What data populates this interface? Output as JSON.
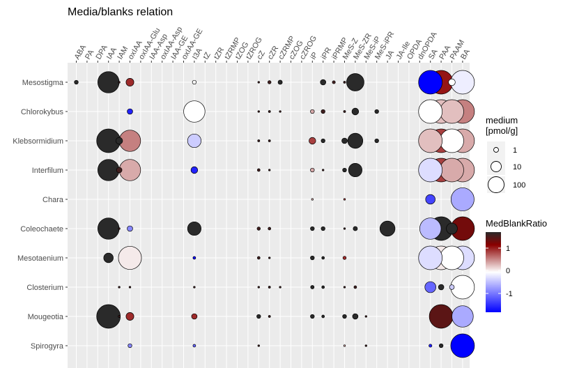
{
  "chart_data": {
    "type": "scatter",
    "title": "Media/blanks relation",
    "xlabel": "",
    "ylabel": "",
    "x_categories": [
      "ABA",
      "PA",
      "DPA",
      "IAA",
      "IAM",
      "oxIAA",
      "oxIAA-Glu",
      "IAA-Asp",
      "oxIAA-Asp",
      "IAA-GE",
      "oxIAA-GE",
      "I3A",
      "tZ",
      "tZR",
      "tZRMP",
      "tZOG",
      "tZROG",
      "cZ",
      "cZR",
      "cZRMP",
      "cZOG",
      "cZROG",
      "iP",
      "iPR",
      "iPRMP",
      "MeS-Z",
      "MeS-ZR",
      "MeS-iP",
      "MeS-iPR",
      "JA",
      "JA-Ile",
      "OPDA",
      "dnOPDA",
      "SA",
      "PAA",
      "PAAM",
      "BA"
    ],
    "y_categories": [
      "Mesostigma",
      "Chlorokybus",
      "Klebsormidium",
      "Interfilum",
      "Chara",
      "Coleochaete",
      "Mesotaenium",
      "Closterium",
      "Mougeotia",
      "Spirogyra"
    ],
    "size_legend": {
      "title": [
        "medium",
        "[pmol/g]"
      ],
      "breaks": [
        "1",
        "10",
        "100"
      ]
    },
    "color_legend": {
      "title": "MedBlankRatio",
      "breaks": [
        "1",
        "0",
        "-1"
      ],
      "low_color": "#0000ff",
      "mid_color": "#ffffff",
      "high_color": "#8b0000",
      "top_color": "#2a2a2a"
    },
    "points": [
      {
        "x": "ABA",
        "y": "Mesostigma",
        "medium": 1,
        "ratio": 1.6
      },
      {
        "x": "IAA",
        "y": "Mesostigma",
        "medium": 30,
        "ratio": 1.6
      },
      {
        "x": "IAM",
        "y": "Mesostigma",
        "medium": 0.2,
        "ratio": 1.5
      },
      {
        "x": "oxIAA",
        "y": "Mesostigma",
        "medium": 4,
        "ratio": 1.0
      },
      {
        "x": "I3A",
        "y": "Mesostigma",
        "medium": 1,
        "ratio": 0
      },
      {
        "x": "cZ",
        "y": "Mesostigma",
        "medium": 0.2,
        "ratio": 1.5
      },
      {
        "x": "cZR",
        "y": "Mesostigma",
        "medium": 0.7,
        "ratio": 1.5
      },
      {
        "x": "cZRMP",
        "y": "Mesostigma",
        "medium": 1.2,
        "ratio": 1.6
      },
      {
        "x": "iPR",
        "y": "Mesostigma",
        "medium": 2,
        "ratio": 1.6
      },
      {
        "x": "iPRMP",
        "y": "Mesostigma",
        "medium": 0.6,
        "ratio": 1.5
      },
      {
        "x": "MeS-Z",
        "y": "Mesostigma",
        "medium": 0.3,
        "ratio": 1.5
      },
      {
        "x": "MeS-ZR",
        "y": "Mesostigma",
        "medium": 20,
        "ratio": 1.6
      },
      {
        "x": "SA",
        "y": "Mesostigma",
        "medium": 40,
        "ratio": -1.5
      },
      {
        "x": "PAA",
        "y": "Mesostigma",
        "medium": 85,
        "ratio": 1.1
      },
      {
        "x": "PAAM",
        "y": "Mesostigma",
        "medium": 3,
        "ratio": 0
      },
      {
        "x": "BA",
        "y": "Mesostigma",
        "medium": 80,
        "ratio": -0.1
      },
      {
        "x": "oxIAA",
        "y": "Chlorokybus",
        "medium": 2,
        "ratio": -1.3
      },
      {
        "x": "I3A",
        "y": "Chlorokybus",
        "medium": 30,
        "ratio": 0
      },
      {
        "x": "cZ",
        "y": "Chlorokybus",
        "medium": 0.2,
        "ratio": 1.5
      },
      {
        "x": "cZR",
        "y": "Chlorokybus",
        "medium": 0.3,
        "ratio": 1.5
      },
      {
        "x": "cZRMP",
        "y": "Chlorokybus",
        "medium": 0.2,
        "ratio": 1.5
      },
      {
        "x": "iP",
        "y": "Chlorokybus",
        "medium": 1,
        "ratio": 0.4
      },
      {
        "x": "iPR",
        "y": "Chlorokybus",
        "medium": 1,
        "ratio": 1.5
      },
      {
        "x": "MeS-Z",
        "y": "Chlorokybus",
        "medium": 0.3,
        "ratio": 1.5
      },
      {
        "x": "MeS-ZR",
        "y": "Chlorokybus",
        "medium": 3,
        "ratio": 1.6
      },
      {
        "x": "MeS-iPR",
        "y": "Chlorokybus",
        "medium": 1,
        "ratio": 1.6
      },
      {
        "x": "SA",
        "y": "Chlorokybus",
        "medium": 40,
        "ratio": 0
      },
      {
        "x": "PAA",
        "y": "Chlorokybus",
        "medium": 120,
        "ratio": 0.3
      },
      {
        "x": "PAAM",
        "y": "Chlorokybus",
        "medium": 80,
        "ratio": 0.3
      },
      {
        "x": "BA",
        "y": "Chlorokybus",
        "medium": 120,
        "ratio": 0.6
      },
      {
        "x": "IAA",
        "y": "Klebsormidium",
        "medium": 120,
        "ratio": 1.6
      },
      {
        "x": "IAM",
        "y": "Klebsormidium",
        "medium": 3,
        "ratio": 1.6
      },
      {
        "x": "oxIAA",
        "y": "Klebsormidium",
        "medium": 30,
        "ratio": 0.6
      },
      {
        "x": "I3A",
        "y": "Klebsormidium",
        "medium": 12,
        "ratio": -0.3
      },
      {
        "x": "cZ",
        "y": "Klebsormidium",
        "medium": 0.3,
        "ratio": 1.5
      },
      {
        "x": "cZR",
        "y": "Klebsormidium",
        "medium": 0.3,
        "ratio": 1.5
      },
      {
        "x": "iP",
        "y": "Klebsormidium",
        "medium": 3,
        "ratio": 0.9
      },
      {
        "x": "iPR",
        "y": "Klebsormidium",
        "medium": 1,
        "ratio": 1.6
      },
      {
        "x": "MeS-Z",
        "y": "Klebsormidium",
        "medium": 2,
        "ratio": 1.6
      },
      {
        "x": "MeS-ZR",
        "y": "Klebsormidium",
        "medium": 15,
        "ratio": 1.6
      },
      {
        "x": "MeS-iPR",
        "y": "Klebsormidium",
        "medium": 1,
        "ratio": 1.6
      },
      {
        "x": "SA",
        "y": "Klebsormidium",
        "medium": 40,
        "ratio": 0.3
      },
      {
        "x": "PAA",
        "y": "Klebsormidium",
        "medium": 140,
        "ratio": 0.9
      },
      {
        "x": "PAAM",
        "y": "Klebsormidium",
        "medium": 120,
        "ratio": 0
      },
      {
        "x": "BA",
        "y": "Klebsormidium",
        "medium": 140,
        "ratio": 0.4
      },
      {
        "x": "IAA",
        "y": "Interfilum",
        "medium": 30,
        "ratio": 1.6
      },
      {
        "x": "IAM",
        "y": "Interfilum",
        "medium": 2,
        "ratio": 1.5
      },
      {
        "x": "oxIAA",
        "y": "Interfilum",
        "medium": 30,
        "ratio": 0.4
      },
      {
        "x": "I3A",
        "y": "Interfilum",
        "medium": 3,
        "ratio": -1.3
      },
      {
        "x": "cZ",
        "y": "Interfilum",
        "medium": 0.5,
        "ratio": 1.5
      },
      {
        "x": "cZR",
        "y": "Interfilum",
        "medium": 0.2,
        "ratio": 1.5
      },
      {
        "x": "iP",
        "y": "Interfilum",
        "medium": 1,
        "ratio": 0.4
      },
      {
        "x": "iPR",
        "y": "Interfilum",
        "medium": 0.2,
        "ratio": 1.5
      },
      {
        "x": "MeS-Z",
        "y": "Interfilum",
        "medium": 1,
        "ratio": 1.6
      },
      {
        "x": "MeS-ZR",
        "y": "Interfilum",
        "medium": 12,
        "ratio": 1.6
      },
      {
        "x": "SA",
        "y": "Interfilum",
        "medium": 40,
        "ratio": -0.2
      },
      {
        "x": "PAA",
        "y": "Interfilum",
        "medium": 140,
        "ratio": 0.9
      },
      {
        "x": "PAAM",
        "y": "Interfilum",
        "medium": 80,
        "ratio": 0.4
      },
      {
        "x": "BA",
        "y": "Interfilum",
        "medium": 140,
        "ratio": 0.4
      },
      {
        "x": "iP",
        "y": "Chara",
        "medium": 0.2,
        "ratio": 0.4
      },
      {
        "x": "MeS-Z",
        "y": "Chara",
        "medium": 0.2,
        "ratio": 0.9
      },
      {
        "x": "SA",
        "y": "Chara",
        "medium": 6,
        "ratio": -1.1
      },
      {
        "x": "BA",
        "y": "Chara",
        "medium": 35,
        "ratio": -0.5
      },
      {
        "x": "IAA",
        "y": "Coleochaete",
        "medium": 30,
        "ratio": 1.6
      },
      {
        "x": "IAM",
        "y": "Coleochaete",
        "medium": 0.2,
        "ratio": 1.5
      },
      {
        "x": "oxIAA",
        "y": "Coleochaete",
        "medium": 2,
        "ratio": -0.7
      },
      {
        "x": "I3A",
        "y": "Coleochaete",
        "medium": 12,
        "ratio": 1.6
      },
      {
        "x": "cZ",
        "y": "Coleochaete",
        "medium": 0.7,
        "ratio": 1.5
      },
      {
        "x": "cZR",
        "y": "Coleochaete",
        "medium": 0.5,
        "ratio": 1.5
      },
      {
        "x": "iP",
        "y": "Coleochaete",
        "medium": 1,
        "ratio": 1.6
      },
      {
        "x": "iPR",
        "y": "Coleochaete",
        "medium": 1,
        "ratio": 1.6
      },
      {
        "x": "MeS-Z",
        "y": "Coleochaete",
        "medium": 0.2,
        "ratio": 1.5
      },
      {
        "x": "MeS-ZR",
        "y": "Coleochaete",
        "medium": 1.2,
        "ratio": 1.6
      },
      {
        "x": "JA",
        "y": "Coleochaete",
        "medium": 15,
        "ratio": 1.6
      },
      {
        "x": "SA",
        "y": "Coleochaete",
        "medium": 30,
        "ratio": -0.4
      },
      {
        "x": "PAA",
        "y": "Coleochaete",
        "medium": 40,
        "ratio": 1.7
      },
      {
        "x": "PAAM",
        "y": "Coleochaete",
        "medium": 8,
        "ratio": 1.6
      },
      {
        "x": "BA",
        "y": "Coleochaete",
        "medium": 120,
        "ratio": 1.3
      },
      {
        "x": "IAA",
        "y": "Mesotaenium",
        "medium": 6,
        "ratio": 1.6
      },
      {
        "x": "oxIAA",
        "y": "Mesotaenium",
        "medium": 35,
        "ratio": 0.1
      },
      {
        "x": "I3A",
        "y": "Mesotaenium",
        "medium": 0.5,
        "ratio": -1.6
      },
      {
        "x": "cZ",
        "y": "Mesotaenium",
        "medium": 0.5,
        "ratio": 1.5
      },
      {
        "x": "cZR",
        "y": "Mesotaenium",
        "medium": 0.2,
        "ratio": 1.5
      },
      {
        "x": "iP",
        "y": "Mesotaenium",
        "medium": 1,
        "ratio": 1.6
      },
      {
        "x": "iPR",
        "y": "Mesotaenium",
        "medium": 0.5,
        "ratio": 1.6
      },
      {
        "x": "MeS-Z",
        "y": "Mesotaenium",
        "medium": 0.7,
        "ratio": 1.0
      },
      {
        "x": "SA",
        "y": "Mesotaenium",
        "medium": 80,
        "ratio": -0.2
      },
      {
        "x": "PAA",
        "y": "Mesotaenium",
        "medium": 140,
        "ratio": 0.1
      },
      {
        "x": "PAAM",
        "y": "Mesotaenium",
        "medium": 90,
        "ratio": 0
      },
      {
        "x": "BA",
        "y": "Mesotaenium",
        "medium": 120,
        "ratio": -0.2
      },
      {
        "x": "IAM",
        "y": "Closterium",
        "medium": 0.2,
        "ratio": 1.5
      },
      {
        "x": "oxIAA",
        "y": "Closterium",
        "medium": 0.2,
        "ratio": 1.5
      },
      {
        "x": "I3A",
        "y": "Closterium",
        "medium": 0.2,
        "ratio": 1.5
      },
      {
        "x": "cZ",
        "y": "Closterium",
        "medium": 0.2,
        "ratio": 1.5
      },
      {
        "x": "cZR",
        "y": "Closterium",
        "medium": 0.3,
        "ratio": 1.5
      },
      {
        "x": "cZRMP",
        "y": "Closterium",
        "medium": 0.2,
        "ratio": 1.5
      },
      {
        "x": "iP",
        "y": "Closterium",
        "medium": 0.8,
        "ratio": 1.6
      },
      {
        "x": "iPR",
        "y": "Closterium",
        "medium": 0.5,
        "ratio": 1.6
      },
      {
        "x": "MeS-Z",
        "y": "Closterium",
        "medium": 0.2,
        "ratio": 1.5
      },
      {
        "x": "MeS-ZR",
        "y": "Closterium",
        "medium": 0.5,
        "ratio": 1.5
      },
      {
        "x": "SA",
        "y": "Closterium",
        "medium": 8,
        "ratio": -0.9
      },
      {
        "x": "PAA",
        "y": "Closterium",
        "medium": 2,
        "ratio": 1.6
      },
      {
        "x": "PAAM",
        "y": "Closterium",
        "medium": 1.5,
        "ratio": -0.3
      },
      {
        "x": "BA",
        "y": "Closterium",
        "medium": 40,
        "ratio": 0
      },
      {
        "x": "IAA",
        "y": "Mougeotia",
        "medium": 40,
        "ratio": 1.6
      },
      {
        "x": "IAM",
        "y": "Mougeotia",
        "medium": 0.3,
        "ratio": 1.5
      },
      {
        "x": "oxIAA",
        "y": "Mougeotia",
        "medium": 4,
        "ratio": 1.0
      },
      {
        "x": "I3A",
        "y": "Mougeotia",
        "medium": 2,
        "ratio": 1.0
      },
      {
        "x": "cZ",
        "y": "Mougeotia",
        "medium": 1,
        "ratio": 1.6
      },
      {
        "x": "cZR",
        "y": "Mougeotia",
        "medium": 0.3,
        "ratio": 1.5
      },
      {
        "x": "iP",
        "y": "Mougeotia",
        "medium": 1,
        "ratio": 1.6
      },
      {
        "x": "iPR",
        "y": "Mougeotia",
        "medium": 0.5,
        "ratio": 1.6
      },
      {
        "x": "MeS-Z",
        "y": "Mougeotia",
        "medium": 1,
        "ratio": 1.6
      },
      {
        "x": "MeS-ZR",
        "y": "Mougeotia",
        "medium": 2,
        "ratio": 1.6
      },
      {
        "x": "MeS-iP",
        "y": "Mougeotia",
        "medium": 0.2,
        "ratio": 1.5
      },
      {
        "x": "PAA",
        "y": "Mougeotia",
        "medium": 40,
        "ratio": 1.4
      },
      {
        "x": "BA",
        "y": "Mougeotia",
        "medium": 30,
        "ratio": -0.5
      },
      {
        "x": "oxIAA",
        "y": "Spirogyra",
        "medium": 1,
        "ratio": -0.7
      },
      {
        "x": "I3A",
        "y": "Spirogyra",
        "medium": 0.5,
        "ratio": -0.9
      },
      {
        "x": "cZ",
        "y": "Spirogyra",
        "medium": 0.2,
        "ratio": 1.5
      },
      {
        "x": "MeS-Z",
        "y": "Spirogyra",
        "medium": 0.2,
        "ratio": 0.4
      },
      {
        "x": "MeS-iP",
        "y": "Spirogyra",
        "medium": 0.2,
        "ratio": 1.5
      },
      {
        "x": "SA",
        "y": "Spirogyra",
        "medium": 0.6,
        "ratio": -1.3
      },
      {
        "x": "PAA",
        "y": "Spirogyra",
        "medium": 1,
        "ratio": 1.6
      },
      {
        "x": "BA",
        "y": "Spirogyra",
        "medium": 40,
        "ratio": -1.5
      }
    ]
  }
}
